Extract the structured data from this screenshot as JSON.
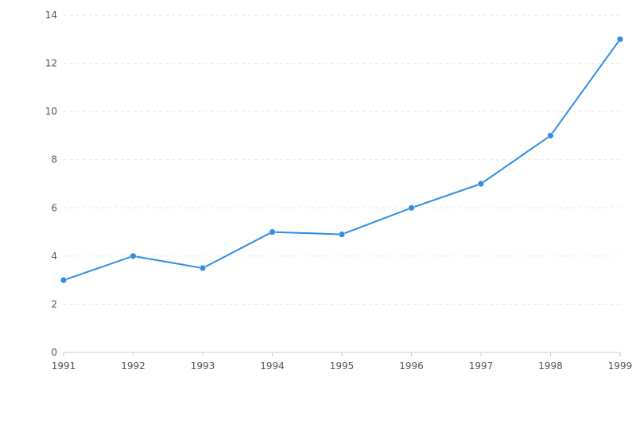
{
  "chart_data": {
    "type": "line",
    "title": "",
    "xlabel": "",
    "ylabel": "",
    "x": [
      "1991",
      "1992",
      "1993",
      "1994",
      "1995",
      "1996",
      "1997",
      "1998",
      "1999"
    ],
    "series": [
      {
        "values": [
          3,
          4,
          3.5,
          5,
          4.9,
          6,
          7,
          9,
          13
        ]
      }
    ],
    "ylim": [
      0,
      14
    ],
    "yticks": [
      "0",
      "2",
      "4",
      "6",
      "8",
      "10",
      "12",
      "14"
    ],
    "grid": true,
    "legend": "none",
    "colors": {
      "line": "#2f8de4",
      "grid": "#e6e6e6",
      "axis": "#cccccc",
      "text": "#555555"
    }
  }
}
